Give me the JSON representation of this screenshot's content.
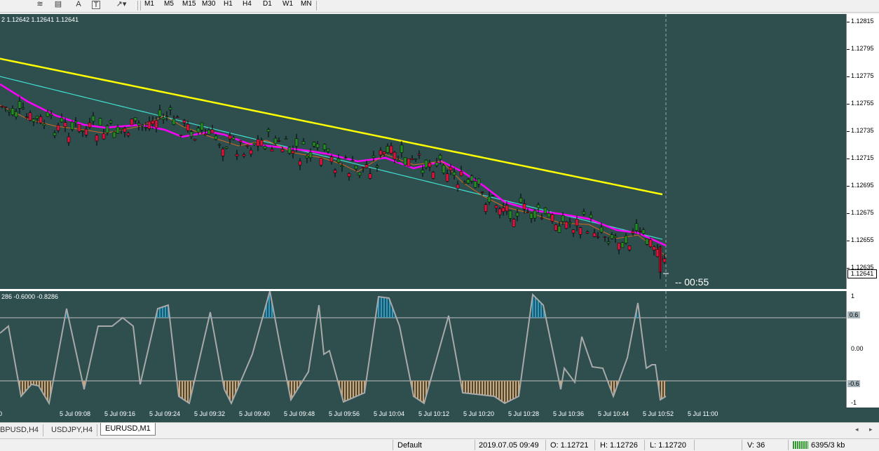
{
  "toolbar": {
    "timeframes": [
      "M1",
      "M5",
      "M15",
      "M30",
      "H1",
      "H4",
      "D1",
      "W1",
      "MN"
    ],
    "text_tool_label": "A",
    "text_label_tool_label": "T"
  },
  "main_chart": {
    "ohlc_text": "2 1.12642 1.12641 1.12641",
    "timer": "-- 00:55",
    "current_price": "1.12641"
  },
  "indicator": {
    "values_text": "286 -0.6000 -0.8286",
    "level_upper_tag": "0.6",
    "level_lower_tag": "-0.6"
  },
  "price_axis": [
    "1.12815",
    "1.12795",
    "1.12775",
    "1.12755",
    "1.12735",
    "1.12715",
    "1.12695",
    "1.12675",
    "1.12655",
    "1.12635"
  ],
  "indicator_axis": [
    "1",
    "0.00",
    "-1"
  ],
  "time_axis": [
    "0",
    "5 Jul 09:08",
    "5 Jul 09:16",
    "5 Jul 09:24",
    "5 Jul 09:32",
    "5 Jul 09:40",
    "5 Jul 09:48",
    "5 Jul 09:56",
    "5 Jul 10:04",
    "5 Jul 10:12",
    "5 Jul 10:20",
    "5 Jul 10:28",
    "5 Jul 10:36",
    "5 Jul 10:44",
    "5 Jul 10:52",
    "5 Jul 11:00"
  ],
  "tabs": [
    "BPUSD,H4",
    "USDJPY,H4",
    "EURUSD,M1"
  ],
  "active_tab": "EURUSD,M1",
  "status": {
    "profile": "Default",
    "datetime": "2019.07.05 09:49",
    "open": "O: 1.12721",
    "high": "H: 1.12726",
    "low": "L: 1.12720",
    "volume": "V: 36",
    "traffic": "6395/3 kb"
  },
  "colors": {
    "chart_bg": "#2f4f4f",
    "bull": "#228b22",
    "bear": "#dc143c",
    "ma_slow": "#ffff00",
    "ma_mid": "#40e0d0",
    "ma_fast": "#ff00ff",
    "ma_short": "#d2691e",
    "osc_line": "#a9a9a9",
    "osc_hi": "#1e9fd6",
    "osc_lo": "#e8a060"
  }
}
